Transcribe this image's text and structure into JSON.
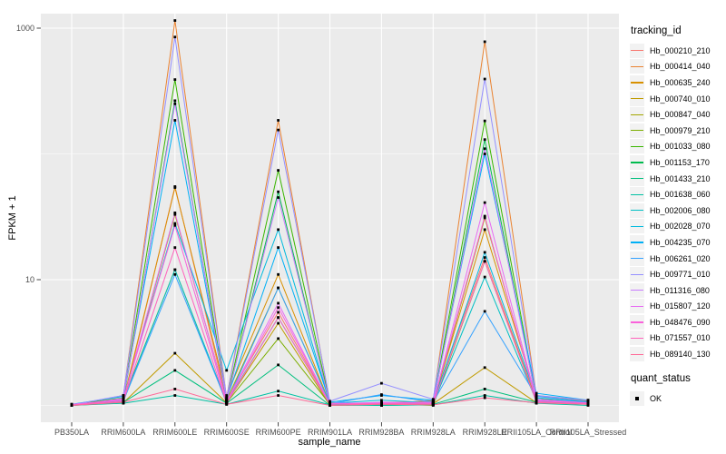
{
  "chart_data": {
    "type": "line",
    "title": "",
    "xlabel": "sample_name",
    "ylabel": "FPKM + 1",
    "y_scale": "log10",
    "ylim": [
      0.9,
      1300
    ],
    "grid": true,
    "legend_position": "right",
    "y_ticks": [
      {
        "value": 10,
        "label": "10"
      },
      {
        "value": 1000,
        "label": "1000"
      }
    ],
    "y_minor_gridlines": [
      1,
      100
    ],
    "categories": [
      "PB350LA",
      "RRIM600LA",
      "RRIM600LE",
      "RRIM600SE",
      "RRIM600PE",
      "RRIM901LA",
      "RRIM928BA",
      "RRIM928LA",
      "RRIM928LE",
      "RRII105LA_Control",
      "RRII105LA_Stressed"
    ],
    "series": [
      {
        "name": "Hb_000210_210",
        "color": "#F8766D",
        "values": [
          1.02,
          1.05,
          55,
          1.1,
          5.5,
          1.02,
          1.05,
          1.08,
          15,
          1.1,
          1.05
        ]
      },
      {
        "name": "Hb_000414_040",
        "color": "#EA8331",
        "values": [
          1.0,
          1.2,
          1150,
          1.15,
          185,
          1.05,
          1.02,
          1.1,
          780,
          1.2,
          1.08
        ]
      },
      {
        "name": "Hb_000635_240",
        "color": "#D89000",
        "values": [
          1.01,
          1.1,
          54,
          1.2,
          11,
          1.03,
          1.0,
          1.05,
          25,
          1.15,
          1.02
        ]
      },
      {
        "name": "Hb_000740_010",
        "color": "#C09B00",
        "values": [
          1.0,
          1.05,
          2.6,
          1.05,
          4.5,
          1.0,
          1.02,
          1.03,
          2.0,
          1.05,
          1.1
        ]
      },
      {
        "name": "Hb_000847_040",
        "color": "#A3A500",
        "values": [
          1.02,
          1.08,
          33,
          1.1,
          8.6,
          1.04,
          1.0,
          1.02,
          31,
          1.1,
          1.05
        ]
      },
      {
        "name": "Hb_000979_210",
        "color": "#7CAE00",
        "values": [
          1.0,
          1.12,
          12,
          1.05,
          3.4,
          1.02,
          1.03,
          1.0,
          14,
          1.08,
          1.03
        ]
      },
      {
        "name": "Hb_001033_080",
        "color": "#39B600",
        "values": [
          1.01,
          1.15,
          390,
          1.1,
          74,
          1.05,
          1.0,
          1.06,
          183,
          1.12,
          1.06
        ]
      },
      {
        "name": "Hb_001153_170",
        "color": "#00BB4E",
        "values": [
          1.0,
          1.1,
          265,
          1.08,
          50,
          1.03,
          1.02,
          1.04,
          130,
          1.1,
          1.04
        ]
      },
      {
        "name": "Hb_001433_210",
        "color": "#00BF7D",
        "values": [
          1.02,
          1.06,
          1.9,
          1.04,
          2.1,
          1.0,
          1.01,
          1.02,
          1.35,
          1.06,
          1.02
        ]
      },
      {
        "name": "Hb_001638_060",
        "color": "#00C1A3",
        "values": [
          1.0,
          1.04,
          1.2,
          1.02,
          1.3,
          1.01,
          1.0,
          1.01,
          1.2,
          1.04,
          1.0
        ]
      },
      {
        "name": "Hb_002006_080",
        "color": "#00BFC4",
        "values": [
          1.01,
          1.1,
          12,
          1.06,
          5.0,
          1.02,
          1.04,
          1.03,
          10.5,
          1.08,
          1.04
        ]
      },
      {
        "name": "Hb_002028_070",
        "color": "#00BADE",
        "values": [
          1.0,
          1.12,
          28,
          1.9,
          25,
          1.04,
          1.1,
          1.05,
          16.5,
          1.15,
          1.06
        ]
      },
      {
        "name": "Hb_004235_070",
        "color": "#00B0F6",
        "values": [
          1.02,
          1.18,
          185,
          1.12,
          18,
          1.06,
          1.2,
          1.1,
          100,
          1.25,
          1.1
        ]
      },
      {
        "name": "Hb_006261_020",
        "color": "#35A2FF",
        "values": [
          1.0,
          1.08,
          11,
          1.05,
          8.6,
          1.03,
          1.22,
          1.06,
          5.6,
          1.18,
          1.07
        ]
      },
      {
        "name": "Hb_009771_010",
        "color": "#9590FF",
        "values": [
          1.01,
          1.2,
          850,
          1.15,
          155,
          1.08,
          1.5,
          1.12,
          394,
          1.2,
          1.1
        ]
      },
      {
        "name": "Hb_011316_080",
        "color": "#C77CFF",
        "values": [
          1.0,
          1.14,
          250,
          1.1,
          45,
          1.04,
          1.05,
          1.06,
          110,
          1.12,
          1.05
        ]
      },
      {
        "name": "Hb_015807_120",
        "color": "#E76BF3",
        "values": [
          1.02,
          1.1,
          34,
          1.08,
          6.5,
          1.02,
          1.06,
          1.04,
          41,
          1.1,
          1.04
        ]
      },
      {
        "name": "Hb_048476_090",
        "color": "#FA62DB",
        "values": [
          1.0,
          1.12,
          27,
          1.06,
          6.0,
          1.03,
          1.04,
          1.05,
          32,
          1.08,
          1.05
        ]
      },
      {
        "name": "Hb_071557_010",
        "color": "#FF62BC",
        "values": [
          1.01,
          1.08,
          18,
          1.04,
          5.0,
          1.02,
          1.03,
          1.03,
          14,
          1.06,
          1.03
        ]
      },
      {
        "name": "Hb_089140_130",
        "color": "#FF6A98",
        "values": [
          1.0,
          1.06,
          1.35,
          1.02,
          1.2,
          1.0,
          1.02,
          1.01,
          1.15,
          1.05,
          1.02
        ]
      }
    ],
    "legend": {
      "series_title": "tracking_id",
      "point_title": "quant_status",
      "point_items": [
        {
          "label": "OK",
          "shape": "square"
        }
      ]
    },
    "colors": {
      "panel_bg": "#EBEBEB",
      "grid_major": "#FFFFFF",
      "grid_minor": "#FFFFFF",
      "axis_text": "#4D4D4D",
      "tick_mark": "#333333",
      "point": "#000000",
      "legend_key_bg": "#F2F2F2"
    }
  }
}
